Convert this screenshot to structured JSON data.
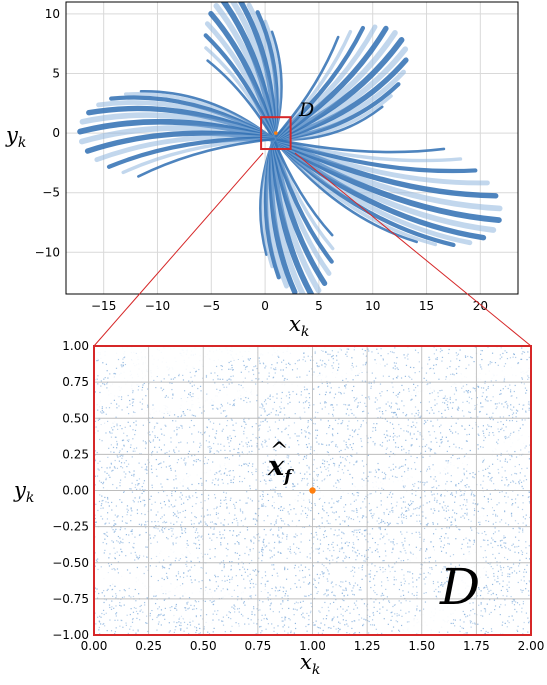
{
  "colors": {
    "attractor": "#2f6fb3",
    "attractor_light": "#8fb6df",
    "fixed_point": "#ff7f0e",
    "frame_red": "#d62728",
    "grid": "#d9d9d9"
  },
  "chart_data": [
    {
      "type": "scatter",
      "xlabel": {
        "base": "x",
        "sub": "k"
      },
      "ylabel": {
        "base": "y",
        "sub": "k"
      },
      "xlim": [
        -18.5,
        23.5
      ],
      "ylim": [
        -13.5,
        11
      ],
      "xticks": [
        "−15",
        "−10",
        "−5",
        "0",
        "5",
        "10",
        "15",
        "20"
      ],
      "xtick_values": [
        -15,
        -10,
        -5,
        0,
        5,
        10,
        15,
        20
      ],
      "yticks": [
        "10",
        "5",
        "0",
        "−5",
        "−10"
      ],
      "ytick_values": [
        10,
        5,
        0,
        -5,
        -10
      ],
      "grid": true,
      "region_label": "D",
      "region": {
        "x": [
          0,
          2
        ],
        "y": [
          -1,
          1
        ]
      },
      "fixed_point": {
        "x": 1,
        "y": 0
      },
      "lobes": 5
    },
    {
      "type": "scatter",
      "xlabel": {
        "base": "x",
        "sub": "k"
      },
      "ylabel": {
        "base": "y",
        "sub": "k"
      },
      "xlim": [
        0,
        2
      ],
      "ylim": [
        -1,
        1
      ],
      "xticks": [
        "0.00",
        "0.25",
        "0.50",
        "0.75",
        "1.00",
        "1.25",
        "1.50",
        "1.75",
        "2.00"
      ],
      "xtick_values": [
        0,
        0.25,
        0.5,
        0.75,
        1,
        1.25,
        1.5,
        1.75,
        2
      ],
      "yticks": [
        "1.00",
        "0.75",
        "0.50",
        "0.25",
        "0.00",
        "−0.25",
        "−0.50",
        "−0.75",
        "−1.00"
      ],
      "ytick_values": [
        1,
        0.75,
        0.5,
        0.25,
        0,
        -0.25,
        -0.5,
        -0.75,
        -1
      ],
      "grid": true,
      "region_label": "D",
      "fixed_point": {
        "x": 1,
        "y": 0
      },
      "fixed_point_label": {
        "base": "x",
        "hat": "^",
        "sub": "f"
      }
    }
  ]
}
